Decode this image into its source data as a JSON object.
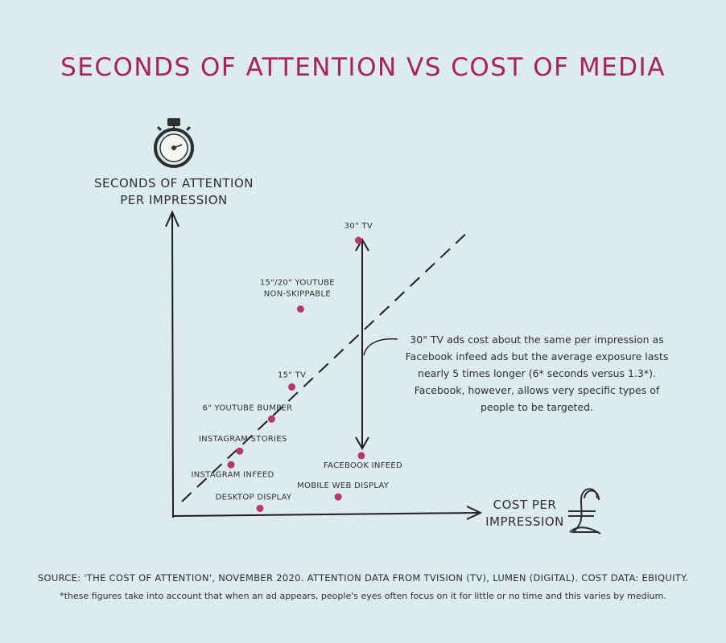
{
  "title": "SECONDS OF ATTENTION VS COST OF MEDIA",
  "y_axis_label": [
    "SECONDS OF ATTENTION",
    "PER IMPRESSION"
  ],
  "x_axis_label": [
    "COST PER",
    "IMPRESSION"
  ],
  "annotation": "30\" TV ads cost about the same per impression as Facebook infeed ads but the average exposure lasts nearly 5 times longer (6* seconds versus 1.3*). Facebook, however, allows very specific types of people to be targeted.",
  "source": "SOURCE: 'THE COST OF ATTENTION', NOVEMBER 2020. ATTENTION DATA FROM TVISION (TV), LUMEN (DIGITAL). COST DATA: EBIQUITY.",
  "footnote": "*these figures take into account that when an ad appears, people's eyes often focus on it for little or no time and this varies by medium.",
  "colors": {
    "title": "#a8235a",
    "points": "#b8386a",
    "ink": "#2f2f2f",
    "background": "#dcebeb"
  },
  "icons": [
    "stopwatch-icon",
    "pound-sign-icon"
  ],
  "chart_data": {
    "type": "scatter",
    "title": "SECONDS OF ATTENTION VS COST OF MEDIA",
    "xlabel": "COST PER IMPRESSION",
    "ylabel": "SECONDS OF ATTENTION PER IMPRESSION",
    "axis_ticks": "none",
    "points": [
      {
        "label": [
          "30\" TV"
        ],
        "x": 0.64,
        "y": 6.0
      },
      {
        "label": [
          "15\"/20\" YOUTUBE",
          "NON-SKIPPABLE"
        ],
        "x": 0.44,
        "y": 4.5
      },
      {
        "label": [
          "15\" TV"
        ],
        "x": 0.41,
        "y": 2.8
      },
      {
        "label": [
          "6\" YOUTUBE BUMPER"
        ],
        "x": 0.34,
        "y": 2.1
      },
      {
        "label": [
          "INSTAGRAM STORIES"
        ],
        "x": 0.23,
        "y": 1.4
      },
      {
        "label": [
          "INSTAGRAM INFEED"
        ],
        "x": 0.2,
        "y": 1.1
      },
      {
        "label": [
          "FACEBOOK INFEED"
        ],
        "x": 0.65,
        "y": 1.3
      },
      {
        "label": [
          "MOBILE WEB DISPLAY"
        ],
        "x": 0.57,
        "y": 0.4
      },
      {
        "label": [
          "DESKTOP DISPLAY"
        ],
        "x": 0.3,
        "y": 0.15
      }
    ],
    "reference_line": "dashed diagonal",
    "comparison_arrow": [
      "30\" TV",
      "FACEBOOK INFEED"
    ]
  }
}
